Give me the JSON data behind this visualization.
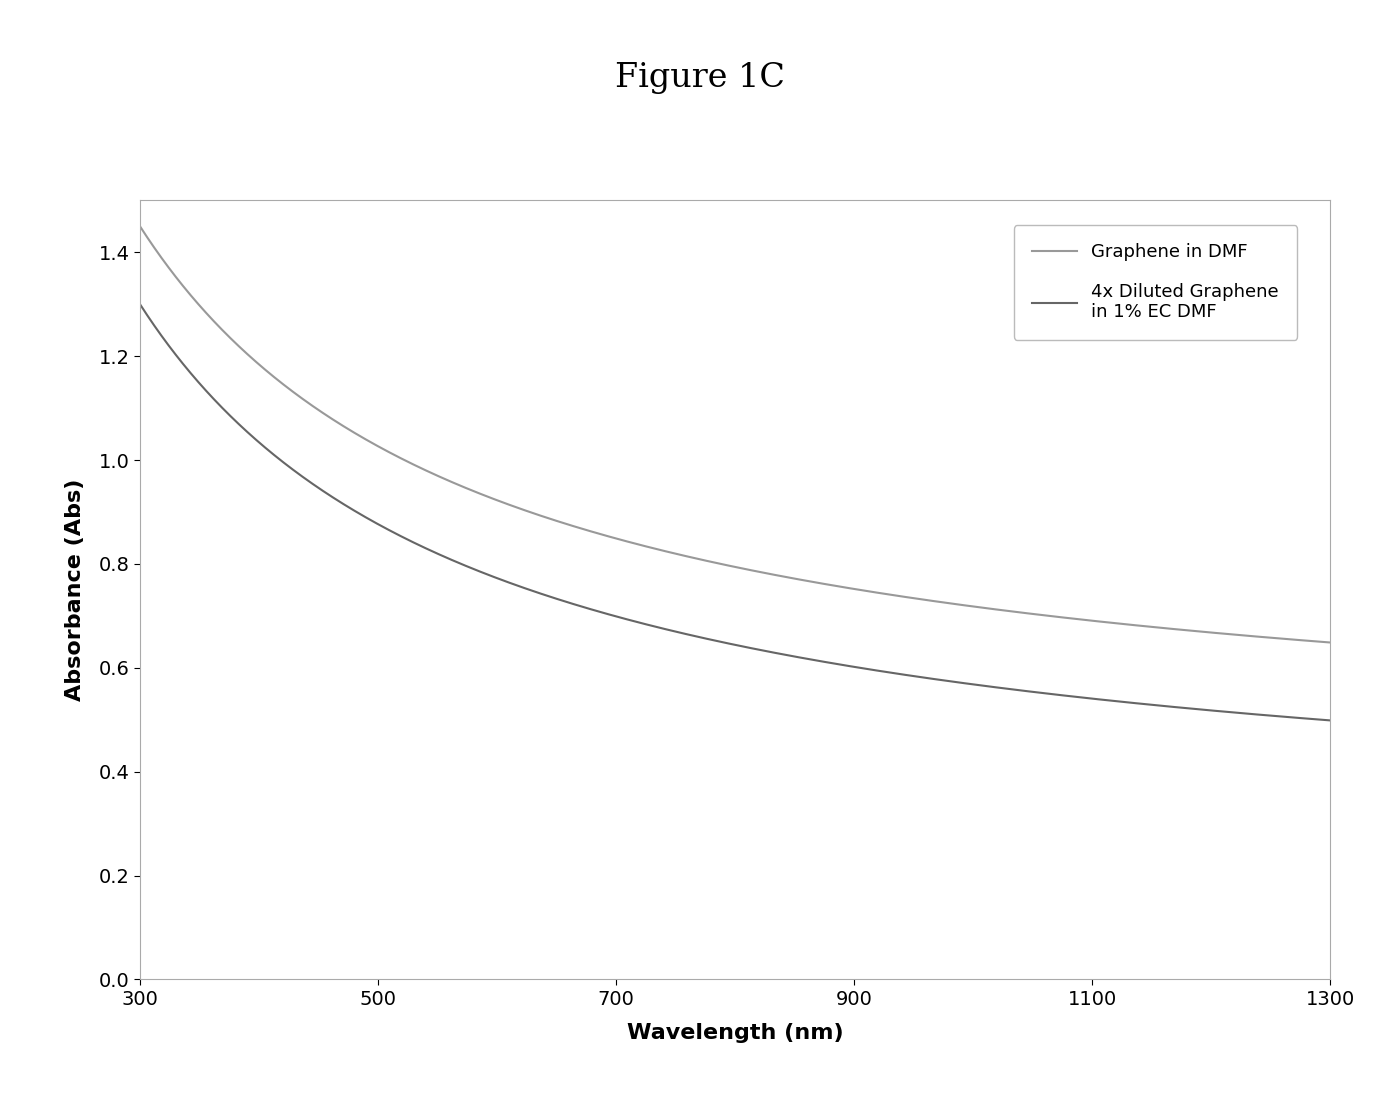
{
  "title": "Figure 1C",
  "xlabel": "Wavelength (nm)",
  "ylabel": "Absorbance (Abs)",
  "xlim": [
    300,
    1300
  ],
  "ylim": [
    0,
    1.5
  ],
  "xticks": [
    300,
    500,
    700,
    900,
    1100,
    1300
  ],
  "yticks": [
    0,
    0.2,
    0.4,
    0.6,
    0.8,
    1.0,
    1.2,
    1.4
  ],
  "line1_label": "Graphene in DMF",
  "line2_label": "4x Diluted Graphene\nin 1% EC DMF",
  "line1_color": "#999999",
  "line2_color": "#666666",
  "background_color": "#ffffff",
  "plot_bg_color": "#ffffff",
  "title_fontsize": 24,
  "axis_label_fontsize": 16,
  "tick_fontsize": 14,
  "legend_fontsize": 13,
  "line_width": 1.5,
  "curve1_A": 5.2,
  "curve1_alpha": 1.05,
  "curve1_C": 0.43,
  "curve2_A": 3.5,
  "curve2_alpha": 1.05,
  "curve2_C": 0.28
}
